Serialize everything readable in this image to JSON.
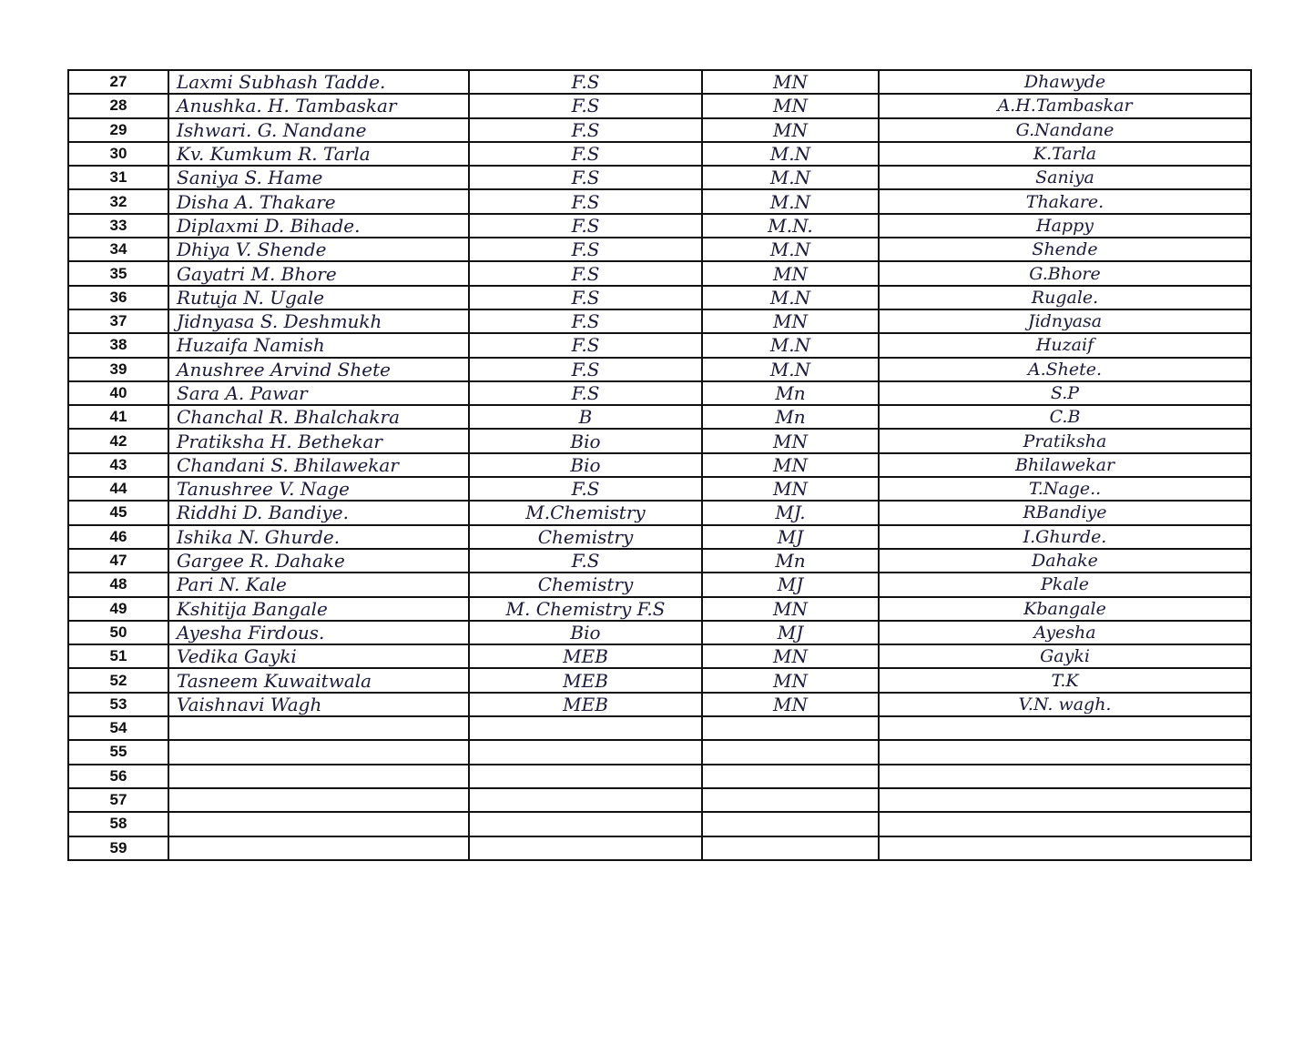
{
  "table": {
    "rows": [
      [
        "27",
        "Laxmi Subhash Tadde.",
        "F.S",
        "MN",
        "Dhawyde"
      ],
      [
        "28",
        "Anushka. H. Tambaskar",
        "F.S",
        "MN",
        "A.H.Tambaskar"
      ],
      [
        "29",
        "Ishwari. G. Nandane",
        "F.S",
        "MN",
        "G.Nandane"
      ],
      [
        "30",
        "Kv. Kumkum R. Tarla",
        "F.S",
        "M.N",
        "K.Tarla"
      ],
      [
        "31",
        "Saniya S. Hame",
        "F.S",
        "M.N",
        "Saniya"
      ],
      [
        "32",
        "Disha A. Thakare",
        "F.S",
        "M.N",
        "Thakare."
      ],
      [
        "33",
        "Diplaxmi D. Bihade.",
        "F.S",
        "M.N.",
        "Happy"
      ],
      [
        "34",
        "Dhiya V. Shende",
        "F.S",
        "M.N",
        "Shende"
      ],
      [
        "35",
        "Gayatri M. Bhore",
        "F.S",
        "MN",
        "G.Bhore"
      ],
      [
        "36",
        "Rutuja N. Ugale",
        "F.S",
        "M.N",
        "Rugale."
      ],
      [
        "37",
        "Jidnyasa S. Deshmukh",
        "F.S",
        "MN",
        "Jidnyasa"
      ],
      [
        "38",
        "Huzaifa Namish",
        "F.S",
        "M.N",
        "Huzaif"
      ],
      [
        "39",
        "Anushree Arvind Shete",
        "F.S",
        "M.N",
        "A.Shete."
      ],
      [
        "40",
        "Sara A. Pawar",
        "F.S",
        "Mn",
        "S.P"
      ],
      [
        "41",
        "Chanchal R. Bhalchakra",
        "B",
        "Mn",
        "C.B"
      ],
      [
        "42",
        "Pratiksha H. Bethekar",
        "Bio",
        "MN",
        "Pratiksha"
      ],
      [
        "43",
        "Chandani S. Bhilawekar",
        "Bio",
        "MN",
        "Bhilawekar"
      ],
      [
        "44",
        "Tanushree V. Nage",
        "F.S",
        "MN",
        "T.Nage.."
      ],
      [
        "45",
        "Riddhi D. Bandiye.",
        "M.Chemistry",
        "MJ.",
        "RBandiye"
      ],
      [
        "46",
        "Ishika N. Ghurde.",
        "Chemistry",
        "MJ",
        "I.Ghurde."
      ],
      [
        "47",
        "Gargee R. Dahake",
        "F.S",
        "Mn",
        "Dahake"
      ],
      [
        "48",
        "Pari N. Kale",
        "Chemistry",
        "MJ",
        "Pkale"
      ],
      [
        "49",
        "Kshitija Bangale",
        "M. Chemistry F.S",
        "MN",
        "Kbangale"
      ],
      [
        "50",
        "Ayesha Firdous.",
        "Bio",
        "MJ",
        "Ayesha"
      ],
      [
        "51",
        "Vedika Gayki",
        "MEB",
        "MN",
        "Gayki"
      ],
      [
        "52",
        "Tasneem Kuwaitwala",
        "MEB",
        "MN",
        "T.K"
      ],
      [
        "53",
        "Vaishnavi Wagh",
        "MEB",
        "MN",
        "V.N. wagh."
      ],
      [
        "54"
      ],
      [
        "55"
      ],
      [
        "56"
      ],
      [
        "57"
      ],
      [
        "58"
      ],
      [
        "59"
      ]
    ]
  }
}
